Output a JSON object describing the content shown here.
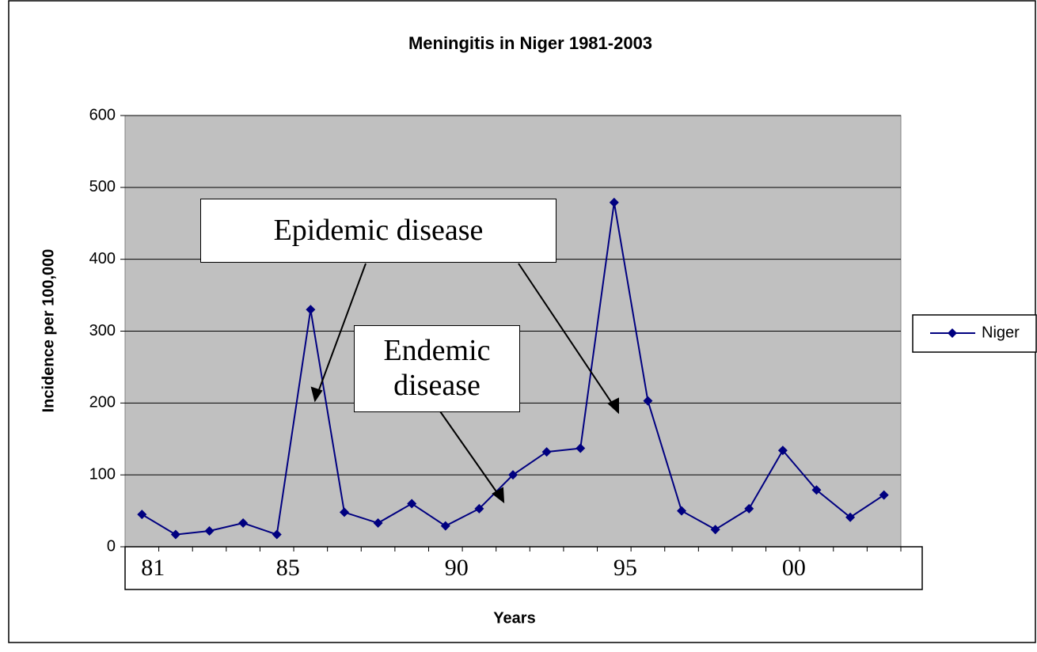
{
  "chart_data": {
    "type": "line",
    "title": "Meningitis in Niger 1981-2003",
    "x_label": "Years",
    "y_label": "Incidence per 100,000",
    "categories": [
      "81",
      null,
      null,
      null,
      "85",
      null,
      null,
      null,
      null,
      "90",
      null,
      null,
      null,
      null,
      "95",
      null,
      null,
      null,
      null,
      "00",
      null,
      null,
      null
    ],
    "series": [
      {
        "name": "Niger",
        "color": "#000080",
        "values": [
          45,
          17,
          22,
          33,
          17,
          330,
          48,
          33,
          60,
          29,
          53,
          100,
          132,
          137,
          479,
          203,
          50,
          24,
          53,
          134,
          79,
          41,
          72
        ]
      }
    ],
    "ylim": [
      0,
      600
    ],
    "yticks": [
      0,
      100,
      200,
      300,
      400,
      500,
      600
    ],
    "grid": true,
    "legend": "right",
    "annotations": [
      "Epidemic disease",
      "Endemic disease"
    ]
  }
}
